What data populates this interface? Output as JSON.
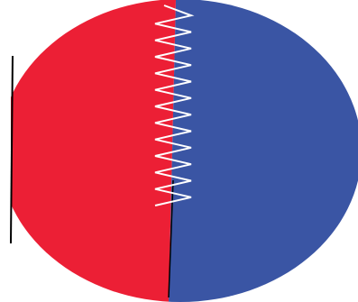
{
  "illustration": {
    "left_half_color": "#EC1F35",
    "right_half_color": "#3A55A4",
    "outline_color": "#000000",
    "zigzag_color": "#FFFFFF",
    "zigzag_teeth": 12
  }
}
